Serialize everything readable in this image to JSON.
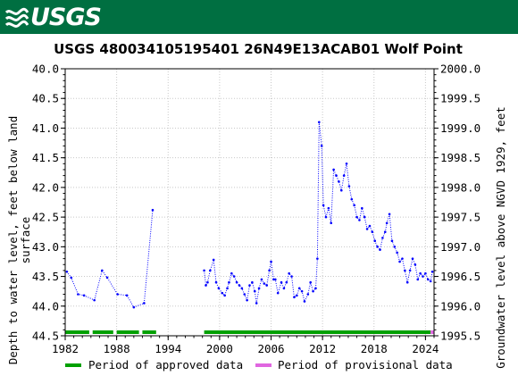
{
  "header": {
    "logo_text": "USGS",
    "brand_color": "#006f41"
  },
  "chart_data": {
    "type": "line",
    "title": "USGS 480034105195401 26N49E13ACAB01 Wolf Point",
    "ylabel_left_line1": "Depth to water level, feet below land",
    "ylabel_left_line2": "surface",
    "ylabel_right": "Groundwater level above NGVD 1929, feet",
    "xlim": [
      1982,
      2025
    ],
    "ylim_left": [
      40.0,
      44.5
    ],
    "ylim_left_inverted": true,
    "ylim_right": [
      2000.0,
      1995.5
    ],
    "x_ticks": [
      1982,
      1988,
      1994,
      2000,
      2006,
      2012,
      2018,
      2024
    ],
    "y_ticks_left": [
      "40.0",
      "40.5",
      "41.0",
      "41.5",
      "42.0",
      "42.5",
      "43.0",
      "43.5",
      "44.0",
      "44.5"
    ],
    "y_ticks_right": [
      "2000.0",
      "1999.5",
      "1999.0",
      "1998.5",
      "1998.0",
      "1997.5",
      "1997.0",
      "1996.5",
      "1996.0",
      "1995.5"
    ],
    "grid": true,
    "series_color": "#0000ff",
    "series": [
      {
        "x": [
          1982.2,
          1982.7,
          1983.5,
          1984.2,
          1985.4,
          1986.3,
          1986.9,
          1988.1,
          1989.2,
          1990.0,
          1991.2,
          1992.2
        ],
        "y": [
          43.42,
          43.52,
          43.8,
          43.82,
          43.9,
          43.4,
          43.52,
          43.8,
          43.82,
          44.02,
          43.95,
          42.38
        ]
      },
      {
        "x": [
          1998.2,
          1998.4,
          1998.6,
          1998.9,
          1999.3,
          1999.6,
          1999.9,
          2000.3,
          2000.6,
          2000.9,
          2001.1,
          2001.4,
          2001.7,
          2002.0,
          2002.3,
          2002.6,
          2002.9,
          2003.2,
          2003.5,
          2003.8,
          2004.1,
          2004.3,
          2004.6,
          2004.9,
          2005.2,
          2005.5,
          2005.8,
          2006.0,
          2006.3,
          2006.5,
          2006.8,
          2007.2,
          2007.5,
          2007.8,
          2008.1,
          2008.4,
          2008.7,
          2009.0,
          2009.3,
          2009.6,
          2009.9,
          2010.3,
          2010.6,
          2010.9,
          2011.2,
          2011.4,
          2011.6,
          2011.9,
          2012.1,
          2012.4,
          2012.7,
          2013.0,
          2013.3,
          2013.6,
          2013.9,
          2014.2,
          2014.5,
          2014.8,
          2015.1,
          2015.4,
          2015.7,
          2016.0,
          2016.3,
          2016.6,
          2016.9,
          2017.2,
          2017.5,
          2017.8,
          2018.1,
          2018.4,
          2018.7,
          2019.0,
          2019.3,
          2019.5,
          2019.8,
          2020.1,
          2020.4,
          2020.7,
          2021.0,
          2021.3,
          2021.6,
          2021.9,
          2022.2,
          2022.5,
          2022.8,
          2023.1,
          2023.4,
          2023.7,
          2024.0,
          2024.3,
          2024.6,
          2024.8
        ],
        "y": [
          43.4,
          43.65,
          43.6,
          43.4,
          43.22,
          43.6,
          43.7,
          43.78,
          43.82,
          43.7,
          43.6,
          43.45,
          43.5,
          43.6,
          43.65,
          43.7,
          43.8,
          43.9,
          43.65,
          43.6,
          43.75,
          43.95,
          43.7,
          43.55,
          43.62,
          43.65,
          43.4,
          43.25,
          43.55,
          43.55,
          43.78,
          43.6,
          43.7,
          43.6,
          43.45,
          43.5,
          43.85,
          43.82,
          43.7,
          43.75,
          43.92,
          43.8,
          43.6,
          43.75,
          43.7,
          43.2,
          40.9,
          41.3,
          42.3,
          42.5,
          42.35,
          42.6,
          41.7,
          41.8,
          41.9,
          42.05,
          41.8,
          41.6,
          41.98,
          42.2,
          42.3,
          42.5,
          42.55,
          42.35,
          42.5,
          42.7,
          42.65,
          42.75,
          42.9,
          43.0,
          43.05,
          42.85,
          42.75,
          42.6,
          42.45,
          42.9,
          43.0,
          43.1,
          43.25,
          43.2,
          43.4,
          43.6,
          43.4,
          43.2,
          43.3,
          43.55,
          43.45,
          43.5,
          43.45,
          43.55,
          43.58,
          43.42
        ]
      }
    ],
    "period_bars": [
      {
        "start": 1982.0,
        "end": 1984.8,
        "status": "approved"
      },
      {
        "start": 1985.2,
        "end": 1987.6,
        "status": "approved"
      },
      {
        "start": 1988.0,
        "end": 1990.6,
        "status": "approved"
      },
      {
        "start": 1991.0,
        "end": 1992.6,
        "status": "approved"
      },
      {
        "start": 1998.2,
        "end": 2024.6,
        "status": "approved"
      },
      {
        "start": 2024.6,
        "end": 2025.0,
        "status": "provisional"
      }
    ],
    "legend": {
      "placement": "bottom",
      "approved_label": "Period of approved data",
      "approved_color": "#00a000",
      "provisional_label": "Period of provisional data",
      "provisional_color": "#e066e0"
    }
  }
}
